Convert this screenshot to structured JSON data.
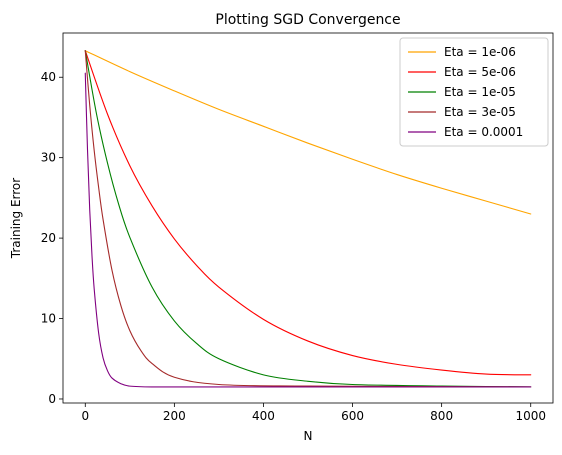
{
  "chart_data": {
    "type": "line",
    "title": "Plotting SGD Convergence",
    "xlabel": "N",
    "ylabel": "Training Error",
    "xlim": [
      -50,
      1050
    ],
    "ylim": [
      -0.5,
      45.5
    ],
    "xticks": [
      0,
      200,
      400,
      600,
      800,
      1000
    ],
    "yticks": [
      0,
      10,
      20,
      30,
      40
    ],
    "grid": false,
    "legend_position": "top-right",
    "series": [
      {
        "name": "Eta = 1e-06",
        "color": "#ffa500",
        "x": [
          0,
          100,
          200,
          300,
          400,
          500,
          600,
          700,
          800,
          900,
          1000
        ],
        "y": [
          43.3,
          40.7,
          38.3,
          36.0,
          33.9,
          31.8,
          29.8,
          27.9,
          26.2,
          24.6,
          23.0
        ]
      },
      {
        "name": "Eta = 5e-06",
        "color": "#ff0000",
        "x": [
          0,
          50,
          100,
          150,
          200,
          250,
          300,
          400,
          500,
          600,
          700,
          800,
          900,
          1000
        ],
        "y": [
          43.3,
          35.4,
          29.0,
          24.0,
          19.9,
          16.6,
          13.9,
          9.9,
          7.2,
          5.4,
          4.3,
          3.6,
          3.1,
          3.0
        ]
      },
      {
        "name": "Eta = 1e-05",
        "color": "#008000",
        "x": [
          0,
          25,
          50,
          75,
          100,
          150,
          200,
          250,
          300,
          400,
          500,
          600,
          800,
          1000
        ],
        "y": [
          43.3,
          35.5,
          29.3,
          24.2,
          20.1,
          13.9,
          9.7,
          6.9,
          5.0,
          3.0,
          2.2,
          1.8,
          1.6,
          1.5
        ]
      },
      {
        "name": "Eta = 3e-05",
        "color": "#a52a2a",
        "x": [
          0,
          10,
          20,
          30,
          40,
          60,
          80,
          100,
          125,
          150,
          200,
          300,
          500,
          1000
        ],
        "y": [
          43.3,
          36.5,
          30.9,
          26.3,
          22.3,
          16.0,
          11.6,
          8.5,
          6.0,
          4.4,
          2.7,
          1.8,
          1.6,
          1.5
        ]
      },
      {
        "name": "Eta = 0.0001",
        "color": "#800080",
        "x": [
          0,
          5,
          10,
          15,
          20,
          30,
          40,
          50,
          60,
          80,
          100,
          150,
          300,
          1000
        ],
        "y": [
          40.5,
          31.0,
          23.5,
          17.9,
          13.7,
          8.2,
          5.1,
          3.5,
          2.6,
          1.9,
          1.6,
          1.5,
          1.5,
          1.5
        ]
      }
    ]
  }
}
